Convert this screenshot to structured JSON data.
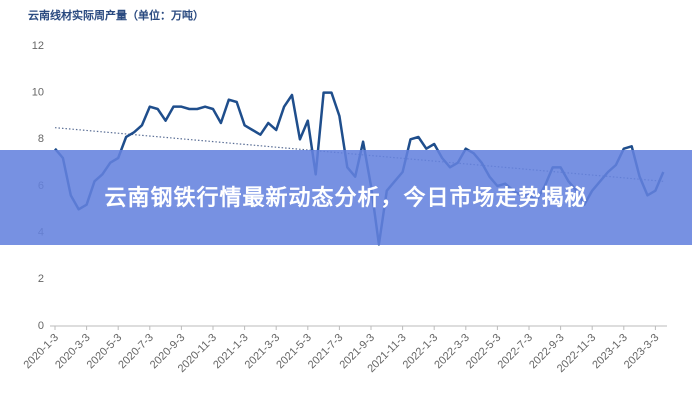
{
  "chart_data": {
    "type": "line",
    "title": "云南线材实际周产量（单位：万吨）",
    "categories": [
      "2020-1-3",
      null,
      null,
      null,
      "2020-3-3",
      null,
      null,
      null,
      "2020-5-3",
      null,
      null,
      null,
      "2020-7-3",
      null,
      null,
      null,
      "2020-9-3",
      null,
      null,
      null,
      "2020-11-3",
      null,
      null,
      null,
      "2021-1-3",
      null,
      null,
      null,
      "2021-3-3",
      null,
      null,
      null,
      "2021-5-3",
      null,
      null,
      null,
      "2021-7-3",
      null,
      null,
      null,
      "2021-9-3",
      null,
      null,
      null,
      "2021-11-3",
      null,
      null,
      null,
      "2022-1-3",
      null,
      null,
      null,
      "2022-3-3",
      null,
      null,
      null,
      "2022-5-3",
      null,
      null,
      null,
      "2022-7-3",
      null,
      null,
      null,
      "2022-9-3",
      null,
      null,
      null,
      "2022-11-3",
      null,
      null,
      null,
      "2023-1-3",
      null,
      null,
      null,
      "2023-3-3",
      null
    ],
    "series": [
      {
        "color": "#1f4e8c",
        "values": [
          7.6,
          7.2,
          5.6,
          5.0,
          5.2,
          6.2,
          6.5,
          7.0,
          7.2,
          8.1,
          8.3,
          8.6,
          9.4,
          9.3,
          8.8,
          9.4,
          9.4,
          9.3,
          9.3,
          9.4,
          9.3,
          8.7,
          9.7,
          9.6,
          8.6,
          8.4,
          8.2,
          8.7,
          8.4,
          9.4,
          9.9,
          8.0,
          8.8,
          6.5,
          10.0,
          10.0,
          9.0,
          6.8,
          6.4,
          7.9,
          6.0,
          3.5,
          5.8,
          6.2,
          6.6,
          8.0,
          8.1,
          7.6,
          7.8,
          7.2,
          6.8,
          7.0,
          7.6,
          7.4,
          7.0,
          6.4,
          6.0,
          6.1,
          5.8,
          5.6,
          5.6,
          5.4,
          6.0,
          6.8,
          6.8,
          6.2,
          5.8,
          5.2,
          5.8,
          6.2,
          6.6,
          6.9,
          7.6,
          7.7,
          6.4,
          5.6,
          5.8,
          6.6
        ]
      }
    ],
    "trendline": {
      "start": 8.5,
      "end": 6.2,
      "color": "#5a6e95"
    },
    "ylim": [
      0,
      12
    ],
    "yticks": [
      0,
      2,
      4,
      6,
      8,
      10,
      12
    ],
    "grid": false
  },
  "overlay": {
    "headline": "云南钢铁行情最新动态分析，今日市场走势揭秘"
  }
}
